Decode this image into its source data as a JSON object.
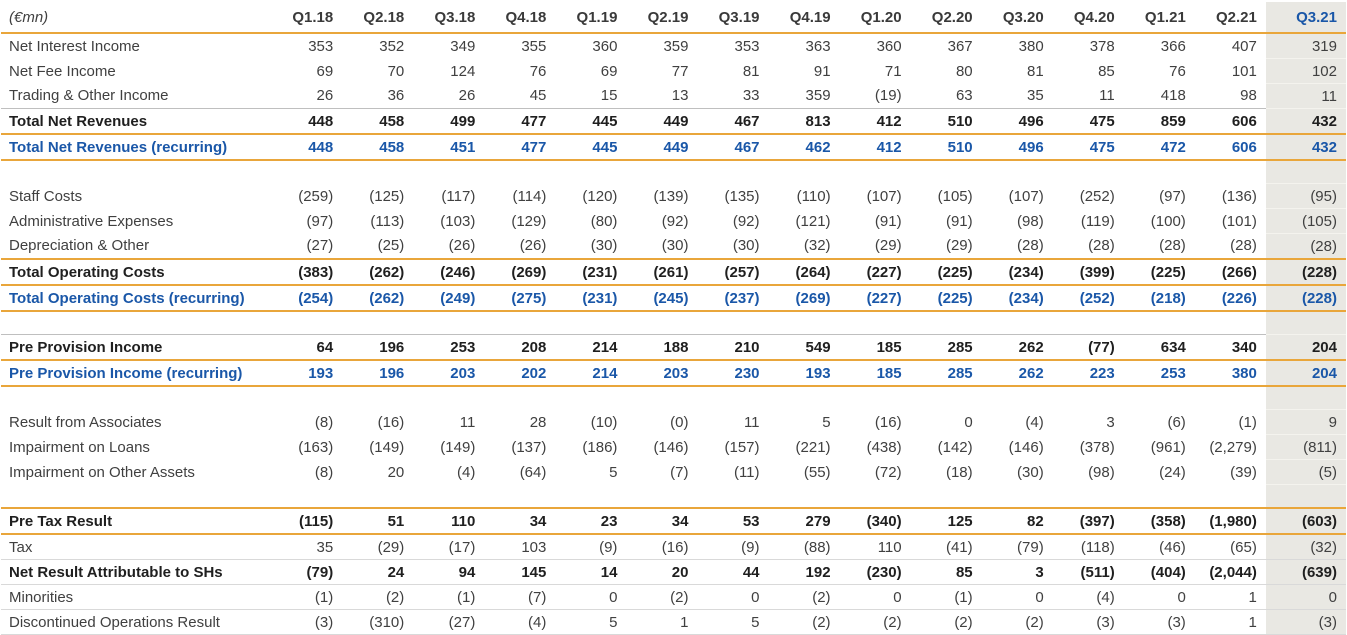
{
  "table": {
    "unit_label": "(€mn)",
    "columns": [
      "Q1.18",
      "Q2.18",
      "Q3.18",
      "Q4.18",
      "Q1.19",
      "Q2.19",
      "Q3.19",
      "Q4.19",
      "Q1.20",
      "Q2.20",
      "Q3.20",
      "Q4.20",
      "Q1.21",
      "Q2.21",
      "Q3.21"
    ],
    "highlight_column": "Q3.21",
    "colors": {
      "rule_gold": "#E9A63B",
      "recurring_and_highlight_blue": "#1A57A8",
      "highlight_column_bg": "#E9E8E3",
      "body_text": "#404040",
      "total_text": "#1F1F1F",
      "thin_rule_gray": "#BFBFBF",
      "row_rule_gray": "#D9D9D9"
    },
    "rows": [
      {
        "type": "item",
        "label": "Net Interest Income",
        "values": [
          "353",
          "352",
          "349",
          "355",
          "360",
          "359",
          "353",
          "363",
          "360",
          "367",
          "380",
          "378",
          "366",
          "407",
          "319"
        ]
      },
      {
        "type": "item",
        "label": "Net Fee Income",
        "values": [
          "69",
          "70",
          "124",
          "76",
          "69",
          "77",
          "81",
          "91",
          "71",
          "80",
          "81",
          "85",
          "76",
          "101",
          "102"
        ]
      },
      {
        "type": "item",
        "label": "Trading & Other Income",
        "values": [
          "26",
          "36",
          "26",
          "45",
          "15",
          "13",
          "33",
          "359",
          "(19)",
          "63",
          "35",
          "11",
          "418",
          "98",
          "11"
        ]
      },
      {
        "type": "total",
        "border_top": "gray",
        "border_bottom": "gold",
        "label": "Total Net Revenues",
        "values": [
          "448",
          "458",
          "499",
          "477",
          "445",
          "449",
          "467",
          "813",
          "412",
          "510",
          "496",
          "475",
          "859",
          "606",
          "432"
        ]
      },
      {
        "type": "recurring",
        "border_bottom": "gold",
        "label": "Total Net Revenues (recurring)",
        "values": [
          "448",
          "458",
          "451",
          "477",
          "445",
          "449",
          "467",
          "462",
          "412",
          "510",
          "496",
          "475",
          "472",
          "606",
          "432"
        ]
      },
      {
        "type": "spacer"
      },
      {
        "type": "item",
        "label": "Staff Costs",
        "values": [
          "(259)",
          "(125)",
          "(117)",
          "(114)",
          "(120)",
          "(139)",
          "(135)",
          "(110)",
          "(107)",
          "(105)",
          "(107)",
          "(252)",
          "(97)",
          "(136)",
          "(95)"
        ]
      },
      {
        "type": "item",
        "label": "Administrative Expenses",
        "values": [
          "(97)",
          "(113)",
          "(103)",
          "(129)",
          "(80)",
          "(92)",
          "(92)",
          "(121)",
          "(91)",
          "(91)",
          "(98)",
          "(119)",
          "(100)",
          "(101)",
          "(105)"
        ]
      },
      {
        "type": "item",
        "label": "Depreciation & Other",
        "values": [
          "(27)",
          "(25)",
          "(26)",
          "(26)",
          "(30)",
          "(30)",
          "(30)",
          "(32)",
          "(29)",
          "(29)",
          "(28)",
          "(28)",
          "(28)",
          "(28)",
          "(28)"
        ]
      },
      {
        "type": "total",
        "border_top": "gold",
        "border_bottom": "gold",
        "label": "Total Operating Costs",
        "values": [
          "(383)",
          "(262)",
          "(246)",
          "(269)",
          "(231)",
          "(261)",
          "(257)",
          "(264)",
          "(227)",
          "(225)",
          "(234)",
          "(399)",
          "(225)",
          "(266)",
          "(228)"
        ]
      },
      {
        "type": "recurring",
        "border_bottom": "gold",
        "label": "Total Operating Costs (recurring)",
        "values": [
          "(254)",
          "(262)",
          "(249)",
          "(275)",
          "(231)",
          "(245)",
          "(237)",
          "(269)",
          "(227)",
          "(225)",
          "(234)",
          "(252)",
          "(218)",
          "(226)",
          "(228)"
        ]
      },
      {
        "type": "spacer"
      },
      {
        "type": "total",
        "border_top": "gray",
        "border_bottom": "gold",
        "label": "Pre Provision Income",
        "values": [
          "64",
          "196",
          "253",
          "208",
          "214",
          "188",
          "210",
          "549",
          "185",
          "285",
          "262",
          "(77)",
          "634",
          "340",
          "204"
        ]
      },
      {
        "type": "recurring",
        "border_bottom": "gold",
        "label": "Pre Provision Income (recurring)",
        "values": [
          "193",
          "196",
          "203",
          "202",
          "214",
          "203",
          "230",
          "193",
          "185",
          "285",
          "262",
          "223",
          "253",
          "380",
          "204"
        ]
      },
      {
        "type": "spacer"
      },
      {
        "type": "item",
        "label": "Result from Associates",
        "values": [
          "(8)",
          "(16)",
          "11",
          "28",
          "(10)",
          "(0)",
          "11",
          "5",
          "(16)",
          "0",
          "(4)",
          "3",
          "(6)",
          "(1)",
          "9"
        ]
      },
      {
        "type": "item",
        "label": "Impairment on Loans",
        "values": [
          "(163)",
          "(149)",
          "(149)",
          "(137)",
          "(186)",
          "(146)",
          "(157)",
          "(221)",
          "(438)",
          "(142)",
          "(146)",
          "(378)",
          "(961)",
          "(2,279)",
          "(811)"
        ]
      },
      {
        "type": "item",
        "label": "Impairment on Other Assets",
        "values": [
          "(8)",
          "20",
          "(4)",
          "(64)",
          "5",
          "(7)",
          "(11)",
          "(55)",
          "(72)",
          "(18)",
          "(30)",
          "(98)",
          "(24)",
          "(39)",
          "(5)"
        ]
      },
      {
        "type": "spacer"
      },
      {
        "type": "total",
        "border_top": "gold",
        "border_bottom": "gold",
        "label": "Pre Tax Result",
        "values": [
          "(115)",
          "51",
          "110",
          "34",
          "23",
          "34",
          "53",
          "279",
          "(340)",
          "125",
          "82",
          "(397)",
          "(358)",
          "(1,980)",
          "(603)"
        ]
      },
      {
        "type": "item",
        "border_bottom": "gray",
        "label": "Tax",
        "values": [
          "35",
          "(29)",
          "(17)",
          "103",
          "(9)",
          "(16)",
          "(9)",
          "(88)",
          "110",
          "(41)",
          "(79)",
          "(118)",
          "(46)",
          "(65)",
          "(32)"
        ]
      },
      {
        "type": "total",
        "border_bottom": "gray",
        "label": "Net Result Attributable to SHs",
        "values": [
          "(79)",
          "24",
          "94",
          "145",
          "14",
          "20",
          "44",
          "192",
          "(230)",
          "85",
          "3",
          "(511)",
          "(404)",
          "(2,044)",
          "(639)"
        ]
      },
      {
        "type": "item",
        "border_bottom": "gray",
        "label": "Minorities",
        "values": [
          "(1)",
          "(2)",
          "(1)",
          "(7)",
          "0",
          "(2)",
          "0",
          "(2)",
          "0",
          "(1)",
          "0",
          "(4)",
          "0",
          "1",
          "0"
        ]
      },
      {
        "type": "item",
        "border_bottom": "gray",
        "label": "Discontinued Operations Result",
        "values": [
          "(3)",
          "(310)",
          "(27)",
          "(4)",
          "5",
          "1",
          "5",
          "(2)",
          "(2)",
          "(2)",
          "(2)",
          "(3)",
          "(3)",
          "1",
          "(3)"
        ]
      }
    ]
  }
}
